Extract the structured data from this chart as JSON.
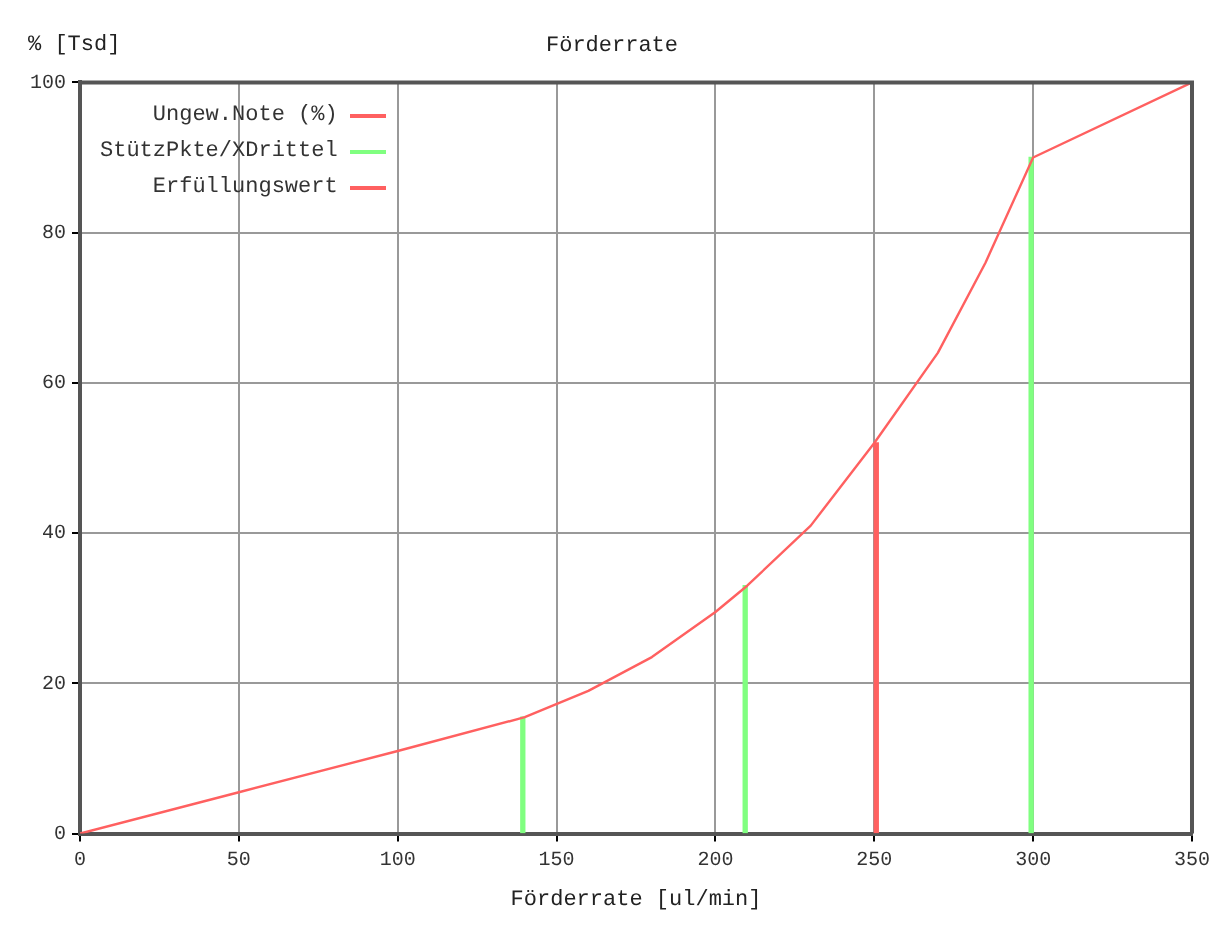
{
  "chart_data": {
    "type": "line",
    "title": "Förderrate",
    "xlabel": "Förderrate [ul/min]",
    "ylabel": "% [Tsd]",
    "xlim": [
      0,
      350
    ],
    "xticks": [
      0,
      50,
      100,
      150,
      200,
      250,
      300,
      350
    ],
    "ylim": [
      0,
      100
    ],
    "yticks": [
      0,
      20,
      40,
      60,
      80,
      100
    ],
    "grid": true,
    "legend": "top left",
    "series": [
      {
        "name": "Ungew.Note (%)",
        "color": "#ff6060",
        "x": [
          0,
          50,
          100,
          140,
          160,
          180,
          200,
          210,
          230,
          250,
          270,
          285,
          300,
          350
        ],
        "values": [
          0,
          5.5,
          11,
          15.5,
          19,
          23.5,
          29.5,
          33,
          41,
          52,
          64,
          76,
          90,
          100
        ]
      },
      {
        "name": "StützPkte/XDrittel",
        "type": "bar",
        "color": "#80ff80",
        "x": [
          140,
          210,
          300
        ],
        "values": [
          15.5,
          33,
          90
        ]
      },
      {
        "name": "Erfüllungswert",
        "type": "bar",
        "color": "#ff6060",
        "x": [
          250
        ],
        "values": [
          52
        ]
      }
    ]
  }
}
